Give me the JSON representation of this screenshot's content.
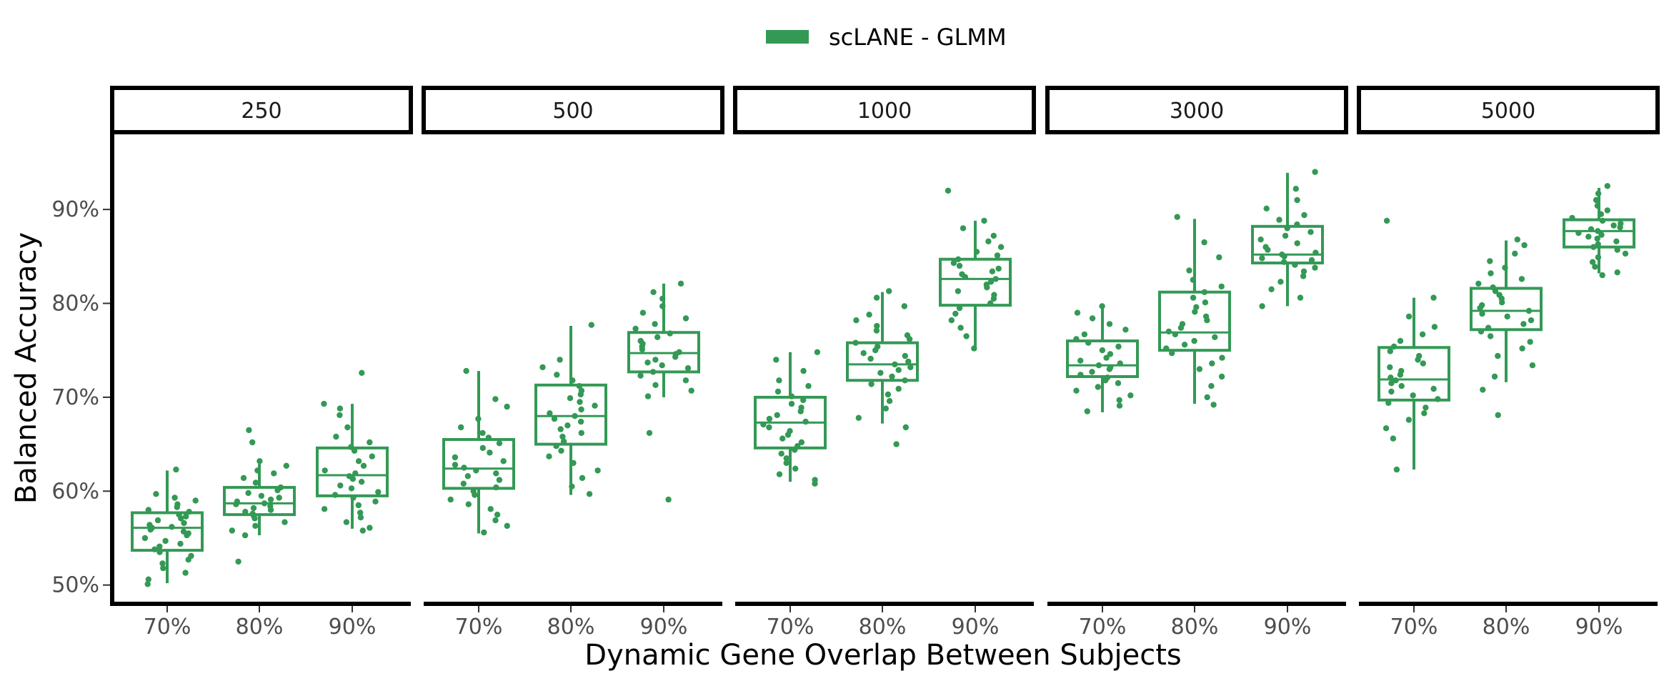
{
  "legend": {
    "label": "scLANE - GLMM",
    "color": "#339955"
  },
  "chart_data": {
    "type": "box",
    "ylabel": "Balanced Accuracy",
    "xlabel": "Dynamic Gene Overlap Between Subjects",
    "ylim": [
      0.48,
      0.98
    ],
    "y_ticks": [
      0.5,
      0.6,
      0.7,
      0.8,
      0.9
    ],
    "y_tick_labels": [
      "50%",
      "60%",
      "70%",
      "80%",
      "90%"
    ],
    "categories": [
      "70%",
      "80%",
      "90%"
    ],
    "grid": false,
    "legend_position": "top",
    "series": [
      {
        "name": "scLANE - GLMM",
        "color": "#339955"
      }
    ],
    "panels": [
      {
        "strip": "250",
        "boxes": [
          {
            "category": "70%",
            "min": 0.502,
            "q1": 0.537,
            "median": 0.561,
            "q3": 0.577,
            "max": 0.622,
            "points": [
              0.623,
              0.597,
              0.593,
              0.59,
              0.586,
              0.583,
              0.58,
              0.578,
              0.575,
              0.573,
              0.571,
              0.569,
              0.566,
              0.564,
              0.562,
              0.561,
              0.559,
              0.557,
              0.555,
              0.553,
              0.55,
              0.547,
              0.544,
              0.541,
              0.538,
              0.535,
              0.531,
              0.527,
              0.523,
              0.518,
              0.513,
              0.506,
              0.501
            ]
          },
          {
            "category": "80%",
            "min": 0.553,
            "q1": 0.575,
            "median": 0.587,
            "q3": 0.604,
            "max": 0.629,
            "points": [
              0.665,
              0.652,
              0.632,
              0.627,
              0.622,
              0.619,
              0.614,
              0.609,
              0.604,
              0.601,
              0.598,
              0.595,
              0.593,
              0.591,
              0.589,
              0.587,
              0.586,
              0.584,
              0.582,
              0.58,
              0.578,
              0.576,
              0.574,
              0.571,
              0.567,
              0.563,
              0.558,
              0.553,
              0.525
            ]
          },
          {
            "category": "90%",
            "min": 0.56,
            "q1": 0.595,
            "median": 0.617,
            "q3": 0.646,
            "max": 0.693,
            "points": [
              0.726,
              0.693,
              0.688,
              0.681,
              0.668,
              0.658,
              0.652,
              0.647,
              0.643,
              0.637,
              0.632,
              0.627,
              0.622,
              0.619,
              0.616,
              0.613,
              0.61,
              0.606,
              0.603,
              0.599,
              0.596,
              0.593,
              0.589,
              0.585,
              0.581,
              0.577,
              0.572,
              0.567,
              0.561,
              0.558
            ]
          }
        ]
      },
      {
        "strip": "500",
        "boxes": [
          {
            "category": "70%",
            "min": 0.555,
            "q1": 0.603,
            "median": 0.624,
            "q3": 0.655,
            "max": 0.728,
            "points": [
              0.728,
              0.698,
              0.69,
              0.677,
              0.668,
              0.662,
              0.657,
              0.651,
              0.646,
              0.641,
              0.636,
              0.632,
              0.628,
              0.625,
              0.622,
              0.619,
              0.616,
              0.612,
              0.608,
              0.604,
              0.6,
              0.596,
              0.591,
              0.586,
              0.581,
              0.575,
              0.569,
              0.563,
              0.556
            ]
          },
          {
            "category": "80%",
            "min": 0.596,
            "q1": 0.65,
            "median": 0.68,
            "q3": 0.713,
            "max": 0.776,
            "points": [
              0.777,
              0.74,
              0.732,
              0.724,
              0.718,
              0.712,
              0.707,
              0.703,
              0.699,
              0.695,
              0.691,
              0.687,
              0.683,
              0.68,
              0.677,
              0.674,
              0.67,
              0.666,
              0.662,
              0.658,
              0.653,
              0.648,
              0.643,
              0.637,
              0.63,
              0.622,
              0.614,
              0.605,
              0.597
            ]
          },
          {
            "category": "90%",
            "min": 0.7,
            "q1": 0.727,
            "median": 0.747,
            "q3": 0.769,
            "max": 0.821,
            "points": [
              0.821,
              0.812,
              0.805,
              0.797,
              0.79,
              0.784,
              0.778,
              0.773,
              0.768,
              0.764,
              0.76,
              0.757,
              0.754,
              0.751,
              0.748,
              0.746,
              0.743,
              0.74,
              0.737,
              0.734,
              0.731,
              0.727,
              0.723,
              0.718,
              0.713,
              0.707,
              0.701,
              0.662,
              0.591
            ]
          }
        ]
      },
      {
        "strip": "1000",
        "boxes": [
          {
            "category": "70%",
            "min": 0.61,
            "q1": 0.646,
            "median": 0.673,
            "q3": 0.7,
            "max": 0.748,
            "points": [
              0.748,
              0.74,
              0.728,
              0.718,
              0.712,
              0.706,
              0.701,
              0.697,
              0.693,
              0.689,
              0.685,
              0.681,
              0.677,
              0.674,
              0.671,
              0.668,
              0.664,
              0.66,
              0.656,
              0.652,
              0.648,
              0.644,
              0.64,
              0.635,
              0.63,
              0.624,
              0.618,
              0.612,
              0.608
            ]
          },
          {
            "category": "80%",
            "min": 0.672,
            "q1": 0.718,
            "median": 0.735,
            "q3": 0.758,
            "max": 0.812,
            "points": [
              0.813,
              0.806,
              0.797,
              0.788,
              0.782,
              0.776,
              0.771,
              0.766,
              0.762,
              0.758,
              0.754,
              0.75,
              0.747,
              0.744,
              0.741,
              0.738,
              0.735,
              0.732,
              0.729,
              0.726,
              0.722,
              0.718,
              0.714,
              0.709,
              0.703,
              0.696,
              0.688,
              0.678,
              0.668,
              0.65
            ]
          },
          {
            "category": "90%",
            "min": 0.752,
            "q1": 0.798,
            "median": 0.826,
            "q3": 0.847,
            "max": 0.888,
            "points": [
              0.92,
              0.888,
              0.88,
              0.872,
              0.866,
              0.86,
              0.855,
              0.851,
              0.847,
              0.843,
              0.84,
              0.837,
              0.834,
              0.831,
              0.828,
              0.826,
              0.823,
              0.82,
              0.817,
              0.813,
              0.809,
              0.805,
              0.8,
              0.795,
              0.789,
              0.782,
              0.774,
              0.765,
              0.752
            ]
          }
        ]
      },
      {
        "strip": "3000",
        "boxes": [
          {
            "category": "70%",
            "min": 0.684,
            "q1": 0.722,
            "median": 0.734,
            "q3": 0.76,
            "max": 0.797,
            "points": [
              0.797,
              0.79,
              0.784,
              0.778,
              0.772,
              0.767,
              0.762,
              0.758,
              0.754,
              0.75,
              0.746,
              0.742,
              0.739,
              0.736,
              0.734,
              0.732,
              0.73,
              0.727,
              0.724,
              0.721,
              0.718,
              0.715,
              0.711,
              0.707,
              0.702,
              0.697,
              0.691,
              0.685
            ]
          },
          {
            "category": "80%",
            "min": 0.693,
            "q1": 0.75,
            "median": 0.769,
            "q3": 0.812,
            "max": 0.89,
            "points": [
              0.892,
              0.865,
              0.849,
              0.835,
              0.825,
              0.818,
              0.812,
              0.806,
              0.801,
              0.796,
              0.791,
              0.786,
              0.782,
              0.778,
              0.774,
              0.77,
              0.767,
              0.764,
              0.76,
              0.756,
              0.752,
              0.747,
              0.742,
              0.736,
              0.73,
              0.722,
              0.712,
              0.7,
              0.692
            ]
          },
          {
            "category": "90%",
            "min": 0.797,
            "q1": 0.843,
            "median": 0.852,
            "q3": 0.882,
            "max": 0.939,
            "points": [
              0.94,
              0.922,
              0.91,
              0.901,
              0.894,
              0.889,
              0.884,
              0.88,
              0.876,
              0.872,
              0.868,
              0.864,
              0.86,
              0.857,
              0.854,
              0.852,
              0.85,
              0.848,
              0.846,
              0.844,
              0.841,
              0.838,
              0.834,
              0.829,
              0.823,
              0.815,
              0.806,
              0.797
            ]
          }
        ]
      },
      {
        "strip": "5000",
        "boxes": [
          {
            "category": "70%",
            "min": 0.623,
            "q1": 0.697,
            "median": 0.719,
            "q3": 0.753,
            "max": 0.806,
            "points": [
              0.888,
              0.806,
              0.786,
              0.775,
              0.767,
              0.76,
              0.754,
              0.749,
              0.744,
              0.74,
              0.736,
              0.732,
              0.728,
              0.724,
              0.721,
              0.718,
              0.715,
              0.712,
              0.709,
              0.706,
              0.702,
              0.698,
              0.694,
              0.689,
              0.683,
              0.676,
              0.667,
              0.656,
              0.623
            ]
          },
          {
            "category": "80%",
            "min": 0.716,
            "q1": 0.772,
            "median": 0.792,
            "q3": 0.816,
            "max": 0.867,
            "points": [
              0.868,
              0.862,
              0.853,
              0.845,
              0.838,
              0.832,
              0.826,
              0.821,
              0.817,
              0.813,
              0.809,
              0.805,
              0.801,
              0.798,
              0.795,
              0.792,
              0.789,
              0.786,
              0.782,
              0.778,
              0.774,
              0.77,
              0.765,
              0.759,
              0.752,
              0.744,
              0.734,
              0.722,
              0.708,
              0.681
            ]
          },
          {
            "category": "90%",
            "min": 0.832,
            "q1": 0.86,
            "median": 0.877,
            "q3": 0.889,
            "max": 0.923,
            "points": [
              0.925,
              0.917,
              0.91,
              0.904,
              0.899,
              0.895,
              0.891,
              0.888,
              0.885,
              0.883,
              0.881,
              0.879,
              0.877,
              0.875,
              0.873,
              0.871,
              0.869,
              0.866,
              0.863,
              0.86,
              0.857,
              0.853,
              0.849,
              0.844,
              0.839,
              0.833,
              0.83
            ]
          }
        ]
      }
    ]
  }
}
